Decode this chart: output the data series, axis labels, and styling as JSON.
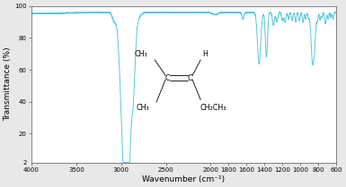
{
  "title": "",
  "xlabel": "Wavenumber (cm⁻¹)",
  "ylabel": "Transmittance (%)",
  "xmin": 600,
  "xmax": 4000,
  "ymin": 2,
  "ymax": 100,
  "line_color": "#5bc8df",
  "background_color": "#e8e8e8",
  "plot_bg_color": "#ffffff",
  "xticks": [
    4000,
    3500,
    3000,
    2500,
    2000,
    1800,
    1600,
    1400,
    1200,
    1000,
    800,
    600
  ],
  "yticks": [
    20,
    40,
    60,
    80,
    100
  ],
  "figwidth": 3.85,
  "figheight": 2.09,
  "dpi": 100
}
